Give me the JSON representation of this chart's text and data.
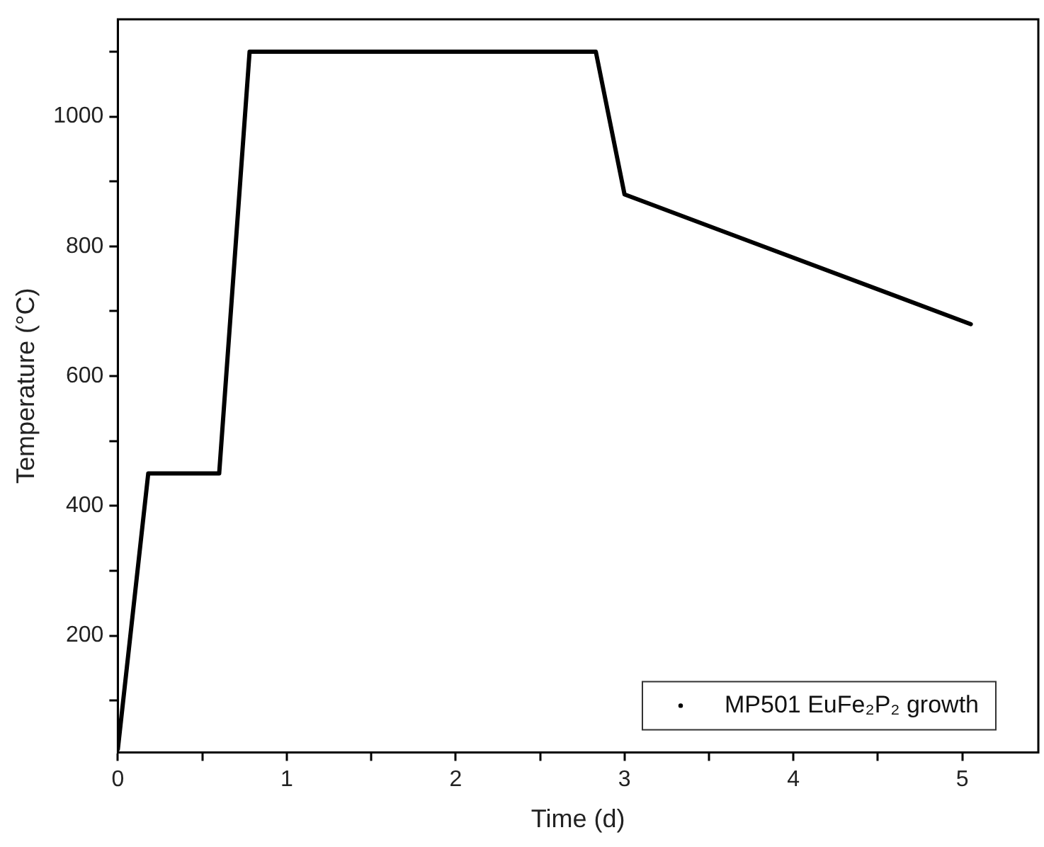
{
  "chart_data": {
    "type": "line",
    "xlabel": "Time (d)",
    "ylabel": "Temperature (°C)",
    "x": [
      0,
      0.18,
      0.6,
      0.78,
      2.83,
      3.0,
      5.05
    ],
    "series": [
      {
        "name": "MP501 EuFe₂P₂ growth",
        "color": "#000000",
        "values": [
          25,
          450,
          450,
          1100,
          1100,
          880,
          680
        ]
      }
    ],
    "xlim": [
      0,
      5.45
    ],
    "ylim": [
      20,
      1150
    ],
    "xticks": [
      0,
      {
        "value": 0.5,
        "label": null
      },
      1,
      {
        "value": 1.5,
        "label": null
      },
      2,
      {
        "value": 2.5,
        "label": null
      },
      3,
      {
        "value": 3.5,
        "label": null
      },
      4,
      {
        "value": 4.5,
        "label": null
      },
      5
    ],
    "yticks": [
      {
        "value": 100,
        "label": null
      },
      200,
      {
        "value": 300,
        "label": null
      },
      400,
      {
        "value": 500,
        "label": null
      },
      600,
      {
        "value": 700,
        "label": null
      },
      800,
      {
        "value": 900,
        "label": null
      },
      1000,
      {
        "value": 1100,
        "label": null
      }
    ],
    "grid": false,
    "legend": "bottom right",
    "line_style": "solid"
  }
}
